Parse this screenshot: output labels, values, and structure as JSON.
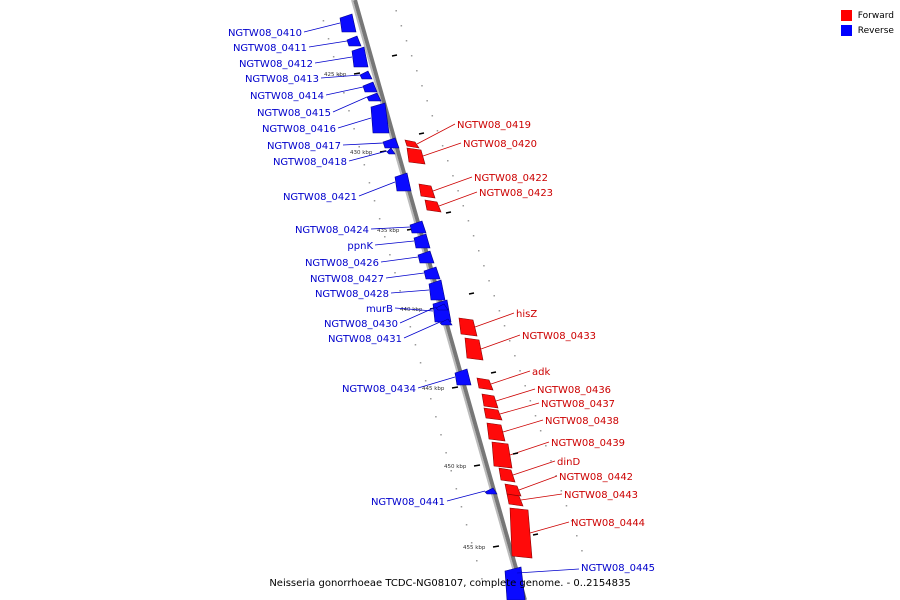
{
  "caption": "Neisseria gonorrhoeae TCDC-NG08107, complete genome. - 0..2154835",
  "legend": [
    {
      "label": "Forward",
      "color": "#ff0000"
    },
    {
      "label": "Reverse",
      "color": "#0000ff"
    }
  ],
  "ruler_labels": [
    "425 kbp",
    "430 kbp",
    "435 kbp",
    "440 kbp",
    "445 kbp",
    "450 kbp",
    "455 kbp"
  ],
  "forward_genes": [
    "NGTW08_0419",
    "NGTW08_0420",
    "NGTW08_0422",
    "NGTW08_0423",
    "hisZ",
    "NGTW08_0433",
    "adk",
    "NGTW08_0436",
    "NGTW08_0437",
    "NGTW08_0438",
    "NGTW08_0439",
    "dinD",
    "NGTW08_0442",
    "NGTW08_0443",
    "NGTW08_0444"
  ],
  "reverse_genes": [
    "NGTW08_0410",
    "NGTW08_0411",
    "NGTW08_0412",
    "NGTW08_0413",
    "NGTW08_0414",
    "NGTW08_0415",
    "NGTW08_0416",
    "NGTW08_0417",
    "NGTW08_0418",
    "NGTW08_0421",
    "NGTW08_0424",
    "ppnK",
    "NGTW08_0426",
    "NGTW08_0427",
    "NGTW08_0428",
    "murB",
    "NGTW08_0430",
    "NGTW08_0431",
    "NGTW08_0434",
    "NGTW08_0441",
    "NGTW08_0445"
  ]
}
